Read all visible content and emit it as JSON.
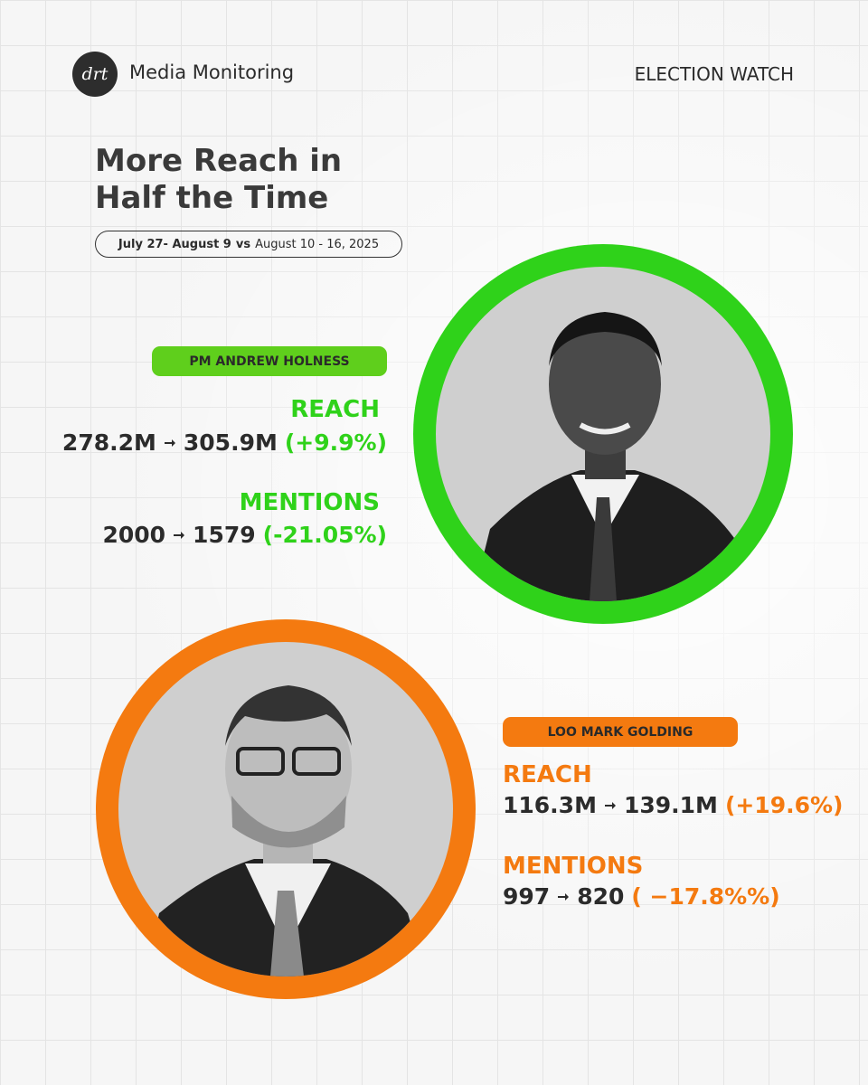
{
  "header": {
    "logo": "drt",
    "brand": "Media Monitoring",
    "tag": "ELECTION WATCH"
  },
  "title": {
    "lines": [
      "More Reach in",
      "Half the Time"
    ]
  },
  "period": {
    "from": "July 27- August 9",
    "vs": "vs",
    "to": "August 10 - 16, 2025"
  },
  "candidates": [
    {
      "name": "PM ANDREW HOLNESS",
      "color": "#2fd21a",
      "pill_color": "#5fcf1c",
      "metrics": [
        {
          "label": "REACH",
          "before": "278.2M",
          "after": "305.9M",
          "change": "(+9.9%)"
        },
        {
          "label": "MENTIONS",
          "before": "2000",
          "after": "1579",
          "change": "(-21.05%)"
        }
      ]
    },
    {
      "name": "LOO MARK GOLDING",
      "color": "#f47a10",
      "pill_color": "#f47a10",
      "metrics": [
        {
          "label": "REACH",
          "before": "116.3M",
          "after": "139.1M",
          "change": "(+19.6%)"
        },
        {
          "label": "MENTIONS",
          "before": "997",
          "after": "820",
          "change": "( −17.8%%)"
        }
      ]
    }
  ]
}
